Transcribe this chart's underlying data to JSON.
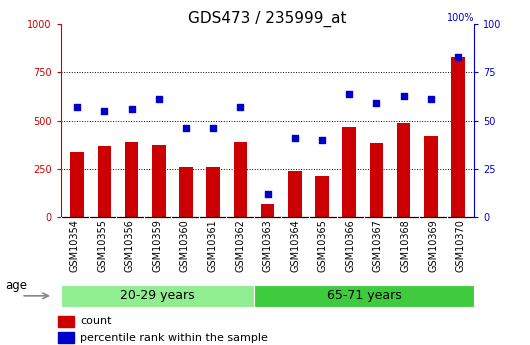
{
  "title": "GDS473 / 235999_at",
  "samples": [
    "GSM10354",
    "GSM10355",
    "GSM10356",
    "GSM10359",
    "GSM10360",
    "GSM10361",
    "GSM10362",
    "GSM10363",
    "GSM10364",
    "GSM10365",
    "GSM10366",
    "GSM10367",
    "GSM10368",
    "GSM10369",
    "GSM10370"
  ],
  "counts": [
    340,
    370,
    390,
    375,
    260,
    260,
    390,
    70,
    240,
    215,
    470,
    385,
    490,
    420,
    830
  ],
  "percentiles": [
    57,
    55,
    56,
    61,
    46,
    46,
    57,
    12,
    41,
    40,
    64,
    59,
    63,
    61,
    83
  ],
  "groups": [
    {
      "label": "20-29 years",
      "start": 0,
      "end": 7,
      "color": "#90EE90"
    },
    {
      "label": "65-71 years",
      "start": 7,
      "end": 15,
      "color": "#3ECC3E"
    }
  ],
  "bar_color": "#CC0000",
  "dot_color": "#0000CC",
  "left_ylim": [
    0,
    1000
  ],
  "right_ylim": [
    0,
    100
  ],
  "left_yticks": [
    0,
    250,
    500,
    750,
    1000
  ],
  "right_yticks": [
    0,
    25,
    50,
    75,
    100
  ],
  "grid_color": "black",
  "tick_bg_color": "#C8C8C8",
  "age_label": "age",
  "legend_count": "count",
  "legend_pct": "percentile rank within the sample",
  "title_fontsize": 11,
  "tick_fontsize": 7,
  "group_label_fontsize": 9,
  "legend_fontsize": 8
}
